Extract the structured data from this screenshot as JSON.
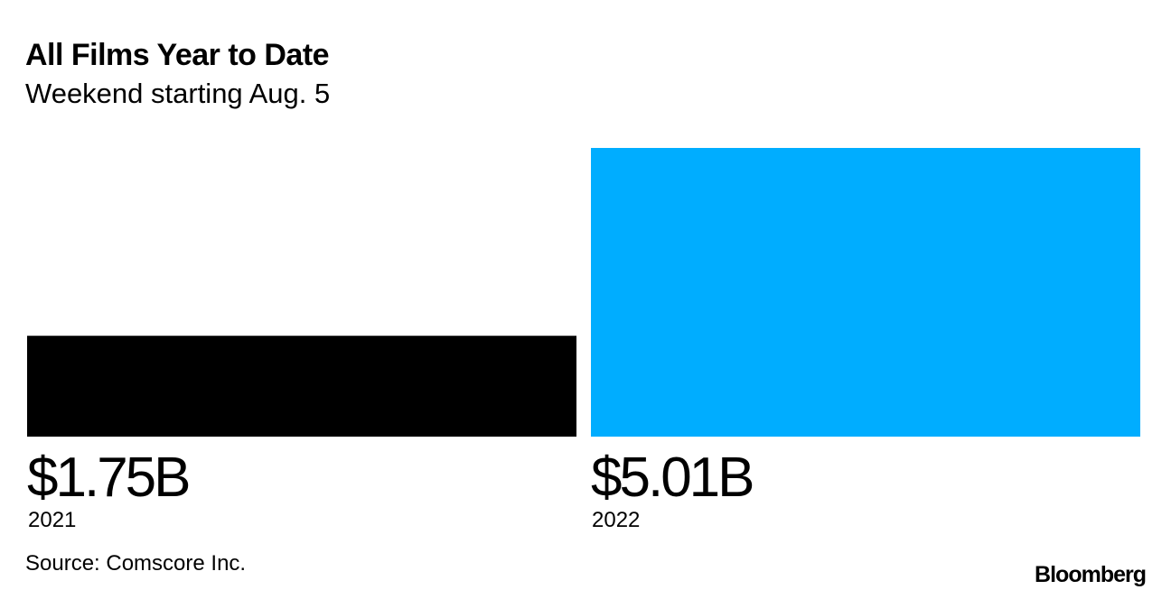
{
  "chart_data": {
    "type": "bar",
    "title": "All Films Year to Date",
    "subtitle": "Weekend starting Aug. 5",
    "categories": [
      "2021",
      "2022"
    ],
    "values": [
      1.75,
      5.01
    ],
    "value_labels": [
      "$1.75B",
      "$5.01B"
    ],
    "colors": [
      "#000000",
      "#00adff"
    ],
    "xlabel": "",
    "ylabel": "",
    "ylim": [
      0,
      5.01
    ],
    "grid": false
  },
  "footer": {
    "source": "Source: Comscore Inc.",
    "logo": "Bloomberg"
  }
}
